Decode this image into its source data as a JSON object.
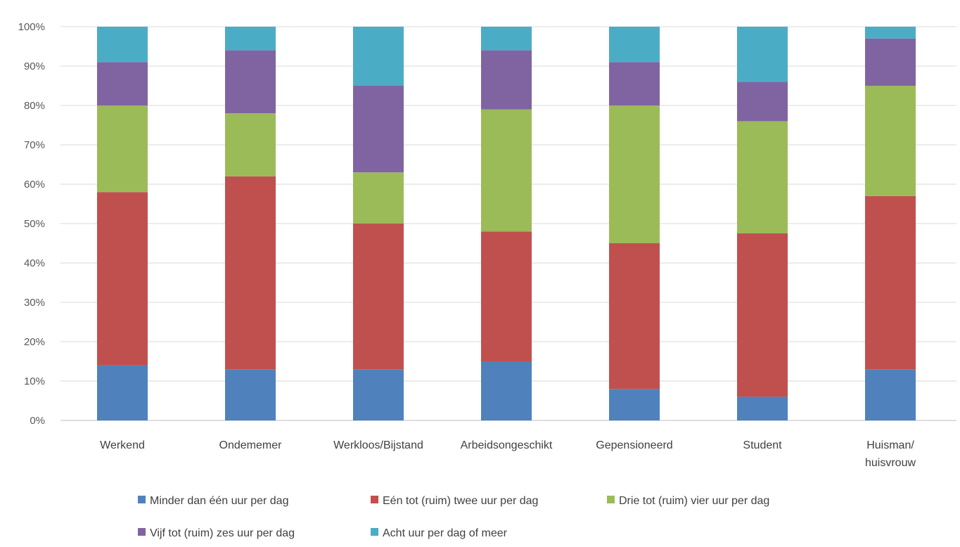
{
  "chart_data": {
    "type": "bar",
    "stacked": true,
    "categories": [
      [
        "Werkend"
      ],
      [
        "Ondememer"
      ],
      [
        "Werkloos/Bijstand"
      ],
      [
        "Arbeidsongeschikt"
      ],
      [
        "Gepensioneerd"
      ],
      [
        "Student"
      ],
      [
        "Huisman/",
        "huisvrouw"
      ]
    ],
    "series": [
      {
        "name": "Minder dan één uur per dag",
        "color": "#4f81bd",
        "values": [
          14,
          13,
          13,
          15,
          8,
          6,
          13
        ]
      },
      {
        "name": "Eén tot (ruim) twee uur per dag",
        "color": "#c0504d",
        "values": [
          44,
          49,
          37,
          33,
          37,
          41.5,
          44
        ]
      },
      {
        "name": "Drie tot (ruim) vier uur per dag",
        "color": "#9bbb59",
        "values": [
          22,
          16,
          13,
          31,
          35,
          28.5,
          28
        ]
      },
      {
        "name": "Vijf tot (ruim) zes uur per dag",
        "color": "#8064a2",
        "values": [
          11,
          16,
          22,
          15,
          11,
          10,
          12
        ]
      },
      {
        "name": "Acht uur per dag of meer",
        "color": "#4bacc6",
        "values": [
          9,
          6,
          15,
          6,
          9,
          14,
          3
        ]
      }
    ],
    "ylim": [
      0,
      100
    ],
    "yticks": [
      0,
      10,
      20,
      30,
      40,
      50,
      60,
      70,
      80,
      90,
      100
    ],
    "ytick_format": "{v}%",
    "grid": true,
    "legend_position": "bottom",
    "title": "",
    "xlabel": "",
    "ylabel": ""
  }
}
